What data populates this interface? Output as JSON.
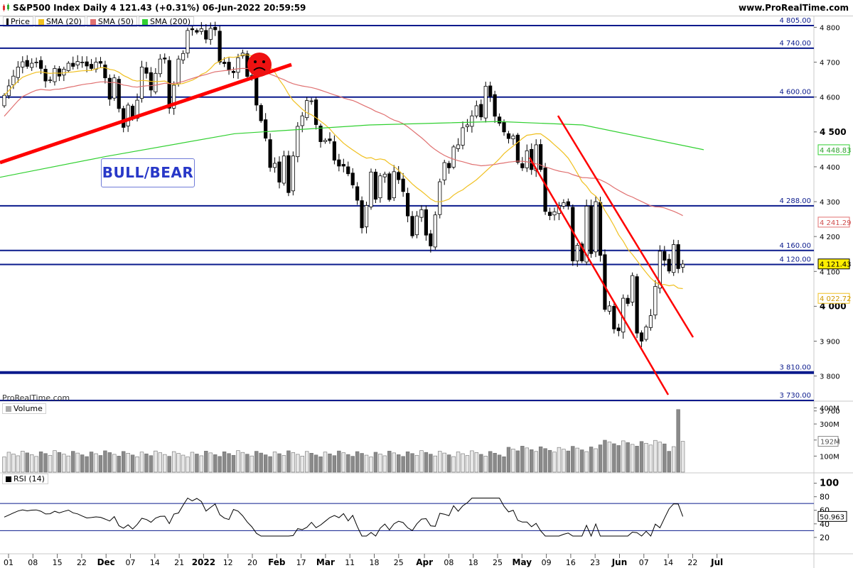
{
  "header": {
    "title": "S&P500 Index Daily 4 121.43 (+0.31%) 06-Jun-2022 20:59:59",
    "site": "www.ProRealTime.com"
  },
  "legend": {
    "price": "Price",
    "sma20": "SMA (20)",
    "sma50": "SMA (50)",
    "sma200": "SMA (200)"
  },
  "annotation": {
    "label": "BULL/BEAR",
    "copyright": "ProRealTime.com"
  },
  "volume_panel": {
    "label": "Volume"
  },
  "rsi_panel": {
    "label": "RSI (14)"
  },
  "colors": {
    "sma20": "#f0c020",
    "sma50": "#e07070",
    "sma200": "#30d030",
    "level": "#0a1a8c",
    "trend": "#ff0000",
    "up_candle": "#ffffff",
    "down_candle": "#000000"
  },
  "chart_data": [
    {
      "type": "candlestick",
      "x_axis_labels": [
        "01",
        "08",
        "15",
        "22",
        "Dec",
        "07",
        "14",
        "21",
        "2022",
        "12",
        "20",
        "Feb",
        "17",
        "Mar",
        "11",
        "18",
        "25",
        "Apr",
        "08",
        "18",
        "25",
        "May",
        "09",
        "16",
        "23",
        "Jun",
        "07",
        "14",
        "22",
        "Jul"
      ],
      "y_ticks": [
        3700,
        3800,
        3900,
        4000,
        4100,
        4200,
        4300,
        4400,
        4500,
        4600,
        4700,
        4800
      ],
      "ylim": [
        3680,
        4830
      ],
      "price_tags": {
        "last": "4 121.43",
        "sma20": "4 022.72",
        "sma50": "4 241.29",
        "sma200": "4 448.83"
      },
      "horizontal_levels": [
        {
          "value": 4805,
          "label": "4 805.00"
        },
        {
          "value": 4740,
          "label": "4 740.00"
        },
        {
          "value": 4600,
          "label": "4 600.00"
        },
        {
          "value": 4288,
          "label": "4 288.00"
        },
        {
          "value": 4160,
          "label": "4 160.00"
        },
        {
          "value": 4120,
          "label": "4 120.00"
        },
        {
          "value": 3810,
          "label": "3 810.00"
        },
        {
          "value": 3730,
          "label": "3 730.00"
        }
      ],
      "closes": [
        4605,
        4632,
        4660,
        4686,
        4701,
        4688,
        4697,
        4700,
        4682,
        4646,
        4649,
        4682,
        4660,
        4680,
        4697,
        4688,
        4702,
        4700,
        4689,
        4682,
        4700,
        4697,
        4655,
        4594,
        4655,
        4567,
        4513,
        4577,
        4538,
        4591,
        4686,
        4668,
        4620,
        4668,
        4709,
        4709,
        4568,
        4634,
        4709,
        4725,
        4791,
        4793,
        4786,
        4796,
        4766,
        4797,
        4793,
        4700,
        4696,
        4677,
        4670,
        4713,
        4726,
        4659,
        4662,
        4577,
        4532,
        4482,
        4398,
        4410,
        4356,
        4431,
        4326,
        4431,
        4516,
        4546,
        4590,
        4589,
        4521,
        4472,
        4476,
        4475,
        4419,
        4402,
        4402,
        4380,
        4348,
        4304,
        4225,
        4289,
        4385,
        4307,
        4374,
        4379,
        4306,
        4386,
        4363,
        4329,
        4259,
        4202,
        4259,
        4277,
        4204,
        4173,
        4262,
        4357,
        4412,
        4397,
        4457,
        4463,
        4512,
        4520,
        4546,
        4575,
        4543,
        4631,
        4602,
        4545,
        4525,
        4500,
        4481,
        4488,
        4413,
        4397,
        4446,
        4392,
        4463,
        4392,
        4272,
        4260,
        4271,
        4288,
        4297,
        4288,
        4130,
        4175,
        4130,
        4287,
        4151,
        4300,
        4146,
        3991,
        4001,
        3935,
        3930,
        4023,
        4008,
        4088,
        3923,
        3900,
        3941,
        3973,
        4057,
        4158,
        4132,
        4101,
        4177,
        4108,
        4121
      ]
    },
    {
      "type": "bar",
      "title": "Volume",
      "y_ticks": [
        "400M",
        "300M",
        "200M",
        "100M"
      ],
      "last_label": "192M",
      "ylim_millions": [
        0,
        420
      ]
    },
    {
      "type": "line",
      "title": "RSI (14)",
      "y_ticks": [
        100,
        80,
        60,
        40,
        20
      ],
      "ylim": [
        0,
        110
      ],
      "last_label": "50.963",
      "bands": [
        70,
        30
      ]
    }
  ]
}
